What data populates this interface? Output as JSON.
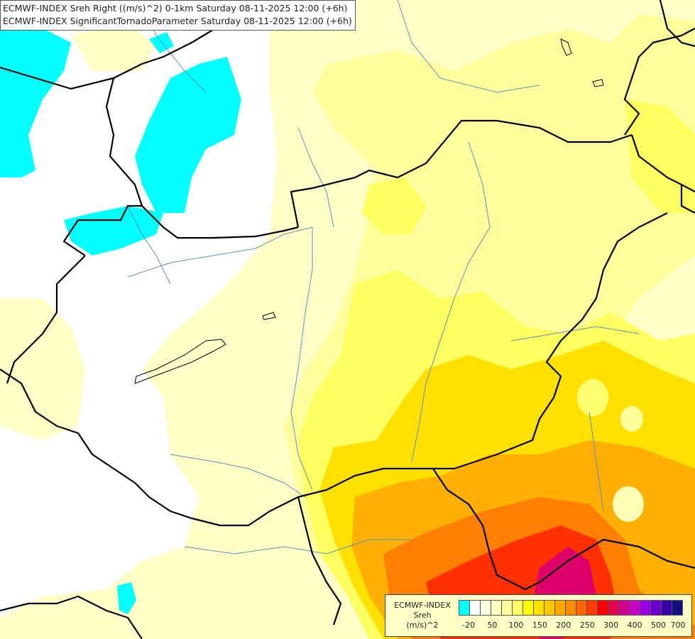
{
  "titles": {
    "line1": "ECMWF-INDEX Sreh Right ((m/s)^2) 0-1km Saturday 08-11-2025 12:00 (+6h)",
    "line2": "ECMWF-INDEX SignificantTornadoParameter Saturday 08-11-2025 12:00 (+6h)"
  },
  "legend": {
    "name_line1": "ECMWF-INDEX",
    "name_line2": "Sreh",
    "name_line3": "(m/s)^2",
    "colors": [
      "#00ffff",
      "#ffffff",
      "#ffffe0",
      "#ffffc0",
      "#ffff99",
      "#ffff66",
      "#ffff00",
      "#ffe000",
      "#ffc800",
      "#ffa800",
      "#ff8c00",
      "#ff6400",
      "#ff3c00",
      "#ff0000",
      "#e0004c",
      "#d00090",
      "#c800c8",
      "#9a00e0",
      "#6a00d0",
      "#3a00a8",
      "#101080"
    ],
    "ticks": [
      "-20",
      "50",
      "100",
      "150",
      "200",
      "250",
      "300",
      "400",
      "500",
      "700"
    ]
  },
  "map_colors": {
    "cyan": "#00ffff",
    "pale": "#ffffc8",
    "lightyellow": "#ffff9e",
    "yellow": "#ffff60",
    "gold": "#ffe000",
    "orange": "#ffb000",
    "darkorange": "#ff8000",
    "red": "#ff3000",
    "magenta": "#e0006a",
    "border": "#000000",
    "river": "#5f8fb8"
  }
}
